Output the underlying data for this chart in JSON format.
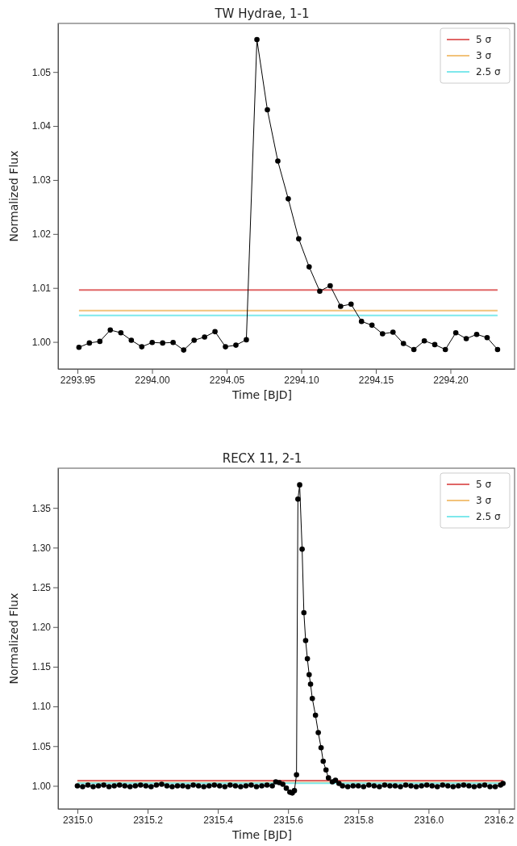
{
  "chart_data": [
    {
      "type": "line",
      "title": "TW Hydrae, 1-1",
      "xlabel": "Time [BJD]",
      "ylabel": "Normalized Flux",
      "marker": "circle",
      "legend": "top right",
      "grid": false,
      "xlim": [
        2293.937,
        2294.243
      ],
      "xticks": [
        {
          "value": 2293.95,
          "label": "2293.95"
        },
        {
          "value": 2294.0,
          "label": "2294.00"
        },
        {
          "value": 2294.05,
          "label": "2294.05"
        },
        {
          "value": 2294.1,
          "label": "2294.10"
        },
        {
          "value": 2294.15,
          "label": "2294.15"
        },
        {
          "value": 2294.2,
          "label": "2294.20"
        }
      ],
      "ylim": [
        0.995,
        1.059
      ],
      "yticks": [
        {
          "value": 1.0,
          "label": "1.00"
        },
        {
          "value": 1.01,
          "label": "1.01"
        },
        {
          "value": 1.02,
          "label": "1.02"
        },
        {
          "value": 1.03,
          "label": "1.03"
        },
        {
          "value": 1.04,
          "label": "1.04"
        },
        {
          "value": 1.05,
          "label": "1.05"
        }
      ],
      "ref_lines": [
        {
          "axis": "y",
          "value": 1.0096,
          "label": "5 σ",
          "color": "#e06666"
        },
        {
          "axis": "y",
          "value": 1.0058,
          "label": "3 σ",
          "color": "#f2c27a"
        },
        {
          "axis": "y",
          "value": 1.0049,
          "label": "2.5 σ",
          "color": "#7ee8ec"
        }
      ],
      "series": [
        {
          "color": "#000000",
          "x": [
            2293.951,
            2293.958,
            2293.965,
            2293.972,
            2293.9791,
            2293.9861,
            2293.9931,
            2294.0001,
            2294.0071,
            2294.0141,
            2294.0212,
            2294.0282,
            2294.0352,
            2294.0422,
            2294.0492,
            2294.0562,
            2294.0632,
            2294.0703,
            2294.0773,
            2294.0843,
            2294.0913,
            2294.0983,
            2294.1053,
            2294.1124,
            2294.1194,
            2294.1264,
            2294.1334,
            2294.1404,
            2294.1474,
            2294.1545,
            2294.1615,
            2294.1685,
            2294.1755,
            2294.1825,
            2294.1895,
            2294.1966,
            2294.2036,
            2294.2106,
            2294.2176,
            2294.2246,
            2294.2316
          ],
          "values": [
            0.999,
            0.9998,
            1.0001,
            1.0022,
            1.0017,
            1.0003,
            0.9991,
            0.9999,
            0.9998,
            0.9999,
            0.9985,
            1.0003,
            1.0009,
            1.0019,
            0.9991,
            0.9994,
            1.0004,
            1.056,
            1.043,
            1.0335,
            1.0265,
            1.0191,
            1.0139,
            1.0094,
            1.0104,
            1.0066,
            1.007,
            1.0038,
            1.0031,
            1.0015,
            1.0018,
            0.9997,
            0.9986,
            1.0002,
            0.9995,
            0.9986,
            1.0017,
            1.0006,
            1.0014,
            1.0008,
            0.9986
          ]
        }
      ]
    },
    {
      "type": "line",
      "title": "RECX 11, 2-1",
      "xlabel": "Time [BJD]",
      "ylabel": "Normalized Flux",
      "marker": "circle",
      "legend": "top right",
      "grid": false,
      "xlim": [
        2314.945,
        2316.245
      ],
      "xticks": [
        {
          "value": 2315.0,
          "label": "2315.0"
        },
        {
          "value": 2315.2,
          "label": "2315.2"
        },
        {
          "value": 2315.4,
          "label": "2315.4"
        },
        {
          "value": 2315.6,
          "label": "2315.6"
        },
        {
          "value": 2315.8,
          "label": "2315.8"
        },
        {
          "value": 2316.0,
          "label": "2316.0"
        },
        {
          "value": 2316.2,
          "label": "2316.2"
        }
      ],
      "ylim": [
        0.971,
        1.4
      ],
      "yticks": [
        {
          "value": 1.0,
          "label": "1.00"
        },
        {
          "value": 1.05,
          "label": "1.05"
        },
        {
          "value": 1.1,
          "label": "1.10"
        },
        {
          "value": 1.15,
          "label": "1.15"
        },
        {
          "value": 1.2,
          "label": "1.20"
        },
        {
          "value": 1.25,
          "label": "1.25"
        },
        {
          "value": 1.3,
          "label": "1.30"
        },
        {
          "value": 1.35,
          "label": "1.35"
        }
      ],
      "ref_lines": [
        {
          "axis": "y",
          "value": 1.0066,
          "label": "5 σ",
          "color": "#e06666"
        },
        {
          "axis": "y",
          "value": 1.004,
          "label": "3 σ",
          "color": "#f2c27a"
        },
        {
          "axis": "y",
          "value": 1.0033,
          "label": "2.5 σ",
          "color": "#7ee8ec"
        }
      ],
      "series": [
        {
          "color": "#000000",
          "x": [
            2315.0,
            2315.015,
            2315.03,
            2315.045,
            2315.06,
            2315.075,
            2315.09,
            2315.105,
            2315.12,
            2315.135,
            2315.15,
            2315.165,
            2315.18,
            2315.195,
            2315.21,
            2315.225,
            2315.24,
            2315.255,
            2315.27,
            2315.285,
            2315.3,
            2315.315,
            2315.33,
            2315.345,
            2315.36,
            2315.375,
            2315.39,
            2315.405,
            2315.42,
            2315.435,
            2315.45,
            2315.465,
            2315.48,
            2315.495,
            2315.51,
            2315.525,
            2315.54,
            2315.555,
            2315.565,
            2315.575,
            2315.585,
            2315.595,
            2315.605,
            2315.612,
            2315.618,
            2315.624,
            2315.628,
            2315.633,
            2315.64,
            2315.645,
            2315.65,
            2315.655,
            2315.66,
            2315.664,
            2315.669,
            2315.678,
            2315.686,
            2315.694,
            2315.7,
            2315.708,
            2315.715,
            2315.726,
            2315.735,
            2315.745,
            2315.755,
            2315.77,
            2315.785,
            2315.8,
            2315.815,
            2315.83,
            2315.845,
            2315.86,
            2315.875,
            2315.89,
            2315.905,
            2315.92,
            2315.935,
            2315.95,
            2315.965,
            2315.98,
            2315.995,
            2316.01,
            2316.025,
            2316.04,
            2316.055,
            2316.07,
            2316.085,
            2316.1,
            2316.115,
            2316.13,
            2316.145,
            2316.16,
            2316.175,
            2316.19,
            2316.205,
            2316.212
          ],
          "values": [
            1.0,
            0.999,
            1.001,
            0.999,
            1.0,
            1.001,
            0.999,
            1.0,
            1.001,
            1.0,
            0.999,
            1.0,
            1.001,
            1.0,
            0.999,
            1.001,
            1.002,
            1.0,
            0.999,
            1.0,
            1.0,
            0.999,
            1.001,
            1.0,
            0.999,
            1.0,
            1.001,
            1.0,
            0.999,
            1.001,
            1.0,
            0.999,
            1.0,
            1.001,
            0.999,
            1.0,
            1.001,
            1.0,
            1.005,
            1.004,
            1.002,
            0.997,
            0.992,
            0.991,
            0.994,
            1.014,
            1.361,
            1.379,
            1.298,
            1.218,
            1.183,
            1.16,
            1.14,
            1.128,
            1.11,
            1.089,
            1.067,
            1.048,
            1.031,
            1.02,
            1.01,
            1.005,
            1.007,
            1.003,
            1.0,
            0.999,
            1.0,
            1.0,
            0.999,
            1.001,
            1.0,
            0.999,
            1.001,
            1.0,
            1.0,
            0.999,
            1.001,
            1.0,
            0.999,
            1.0,
            1.001,
            1.0,
            0.999,
            1.001,
            1.0,
            0.999,
            1.0,
            1.001,
            1.0,
            0.999,
            1.0,
            1.001,
            0.999,
            0.999,
            1.001,
            1.003
          ]
        }
      ]
    }
  ]
}
